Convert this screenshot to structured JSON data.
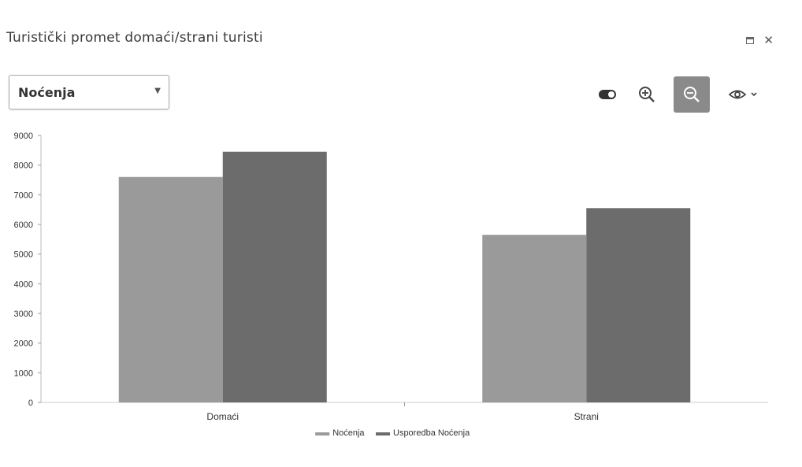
{
  "header": {
    "title": "Turistički promet domaći/strani turisti"
  },
  "controls": {
    "metric_select_value": "Noćenja"
  },
  "toolbar": {
    "items": [
      "toggle-icon",
      "zoom-in-icon",
      "zoom-out-icon",
      "eye-icon"
    ],
    "active": "zoom-out-icon"
  },
  "colors": {
    "series_1": "#9a9a9a",
    "series_2": "#6c6c6c",
    "active_button": "#8a8a8a"
  },
  "chart_data": {
    "type": "bar",
    "categories": [
      "Domaći",
      "Strani"
    ],
    "series": [
      {
        "name": "Noćenja",
        "values": [
          7600,
          5650
        ]
      },
      {
        "name": "Usporedba Noćenja",
        "values": [
          8450,
          6550
        ]
      }
    ],
    "ylim": [
      0,
      9000
    ],
    "yticks": [
      0,
      1000,
      2000,
      3000,
      4000,
      5000,
      6000,
      7000,
      8000,
      9000
    ],
    "grid": false,
    "legend_position": "bottom-center"
  }
}
